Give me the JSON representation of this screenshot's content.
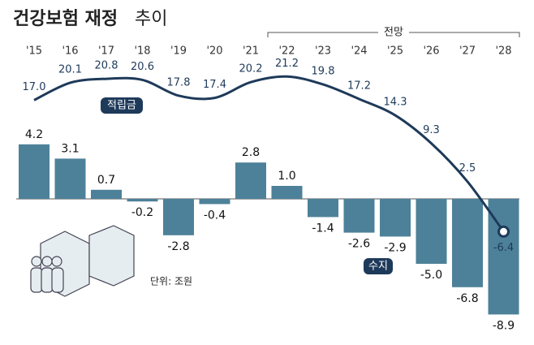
{
  "chart_data": {
    "type": "bar-line",
    "title": "건강보험 재정",
    "title_suffix": "추이",
    "forecast_label": "전망",
    "unit": "단위: 조원",
    "categories": [
      "'15",
      "'16",
      "'17",
      "'18",
      "'19",
      "'20",
      "'21",
      "'22",
      "'23",
      "'24",
      "'25",
      "'26",
      "'27",
      "'28"
    ],
    "series": [
      {
        "name": "적립금",
        "type": "line",
        "color": "#1e3a5a",
        "values": [
          17.0,
          20.1,
          20.8,
          20.6,
          17.8,
          17.4,
          20.2,
          21.2,
          19.8,
          17.2,
          14.3,
          9.3,
          2.5,
          -6.4
        ],
        "value_labels": [
          "17.0",
          "20.1",
          "20.8",
          "20.6",
          "17.8",
          "17.4",
          "20.2",
          "21.2",
          "19.8",
          "17.2",
          "14.3",
          "9.3",
          "2.5",
          "-6.4"
        ]
      },
      {
        "name": "수지",
        "type": "bar",
        "color": "#4d8199",
        "values": [
          4.2,
          3.1,
          0.7,
          -0.2,
          -2.8,
          -0.4,
          2.8,
          1.0,
          -1.4,
          -2.6,
          -2.9,
          -5.0,
          -6.8,
          -8.9
        ],
        "value_labels": [
          "4.2",
          "3.1",
          "0.7",
          "-0.2",
          "-2.8",
          "-0.4",
          "2.8",
          "1.0",
          "-1.4",
          "-2.6",
          "-2.9",
          "-5.0",
          "-6.8",
          "-8.9"
        ]
      }
    ]
  }
}
